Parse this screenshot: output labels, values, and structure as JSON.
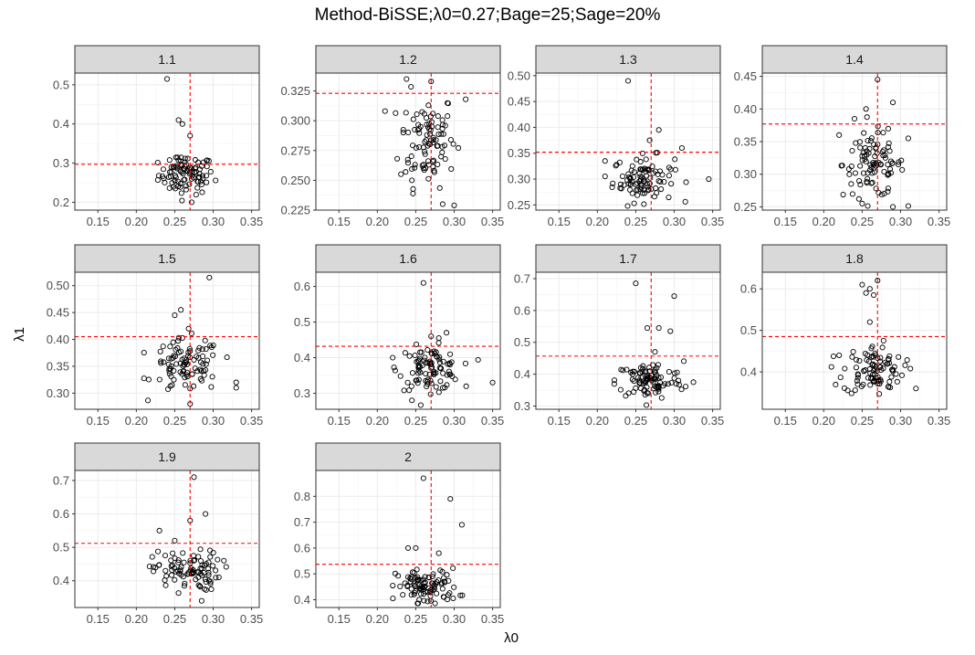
{
  "chart_data": {
    "type": "scatter",
    "title": "Method-BiSSE;λ0=0.27;Bage=25;Sage=20%",
    "xlabel": "λ0",
    "ylabel": "λ1",
    "xlim": [
      0.12,
      0.36
    ],
    "x_ticks": [
      0.15,
      0.2,
      0.25,
      0.3,
      0.35
    ],
    "x_tick_labels": [
      "0.15",
      "0.20",
      "0.25",
      "0.30",
      "0.35"
    ],
    "vline_x": 0.27,
    "colors": {
      "reference_line": "#ff0000",
      "strip_bg": "#d9d9d9",
      "grid": "#ebebeb",
      "point": "#000000"
    },
    "grid": true,
    "legend": "none",
    "panels": [
      {
        "label": "1.1",
        "hline": 0.297,
        "ylim": [
          0.18,
          0.53
        ],
        "y_ticks": [
          0.2,
          0.3,
          0.4,
          0.5
        ],
        "y_tick_labels": [
          "0.2",
          "0.3",
          "0.4",
          "0.5"
        ],
        "outliers": [
          [
            0.24,
            0.515
          ],
          [
            0.255,
            0.41
          ],
          [
            0.26,
            0.4
          ],
          [
            0.27,
            0.37
          ],
          [
            0.272,
            0.2
          ]
        ],
        "center": [
          0.265,
          0.27
        ],
        "spread": [
          0.018,
          0.025
        ]
      },
      {
        "label": "1.2",
        "hline": 0.323,
        "ylim": [
          0.225,
          0.34
        ],
        "y_ticks": [
          0.225,
          0.25,
          0.275,
          0.3,
          0.325
        ],
        "y_tick_labels": [
          "0.225",
          "0.250",
          "0.275",
          "0.300",
          "0.325"
        ],
        "outliers": [
          [
            0.238,
            0.335
          ],
          [
            0.27,
            0.333
          ],
          [
            0.315,
            0.318
          ],
          [
            0.3,
            0.229
          ],
          [
            0.245,
            0.25
          ],
          [
            0.285,
            0.23
          ]
        ],
        "center": [
          0.265,
          0.285
        ],
        "spread": [
          0.018,
          0.02
        ]
      },
      {
        "label": "1.3",
        "hline": 0.352,
        "ylim": [
          0.24,
          0.505
        ],
        "y_ticks": [
          0.25,
          0.3,
          0.35,
          0.4,
          0.45,
          0.5
        ],
        "y_tick_labels": [
          "0.25",
          "0.30",
          "0.35",
          "0.40",
          "0.45",
          "0.50"
        ],
        "outliers": [
          [
            0.24,
            0.49
          ],
          [
            0.28,
            0.395
          ],
          [
            0.268,
            0.375
          ],
          [
            0.345,
            0.3
          ],
          [
            0.31,
            0.36
          ],
          [
            0.21,
            0.335
          ]
        ],
        "center": [
          0.26,
          0.3
        ],
        "spread": [
          0.02,
          0.022
        ]
      },
      {
        "label": "1.4",
        "hline": 0.377,
        "ylim": [
          0.245,
          0.455
        ],
        "y_ticks": [
          0.25,
          0.3,
          0.35,
          0.4,
          0.45
        ],
        "y_tick_labels": [
          "0.25",
          "0.30",
          "0.35",
          "0.40",
          "0.45"
        ],
        "outliers": [
          [
            0.27,
            0.445
          ],
          [
            0.29,
            0.41
          ],
          [
            0.255,
            0.4
          ],
          [
            0.24,
            0.385
          ],
          [
            0.22,
            0.36
          ],
          [
            0.29,
            0.25
          ],
          [
            0.25,
            0.255
          ],
          [
            0.31,
            0.355
          ]
        ],
        "center": [
          0.265,
          0.315
        ],
        "spread": [
          0.02,
          0.025
        ]
      },
      {
        "label": "1.5",
        "hline": 0.405,
        "ylim": [
          0.27,
          0.525
        ],
        "y_ticks": [
          0.3,
          0.35,
          0.4,
          0.45,
          0.5
        ],
        "y_tick_labels": [
          "0.30",
          "0.35",
          "0.40",
          "0.45",
          "0.50"
        ],
        "outliers": [
          [
            0.295,
            0.515
          ],
          [
            0.258,
            0.455
          ],
          [
            0.25,
            0.445
          ],
          [
            0.268,
            0.42
          ],
          [
            0.33,
            0.32
          ],
          [
            0.33,
            0.31
          ],
          [
            0.27,
            0.28
          ]
        ],
        "center": [
          0.265,
          0.35
        ],
        "spread": [
          0.022,
          0.025
        ]
      },
      {
        "label": "1.6",
        "hline": 0.432,
        "ylim": [
          0.255,
          0.64
        ],
        "y_ticks": [
          0.3,
          0.4,
          0.5,
          0.6
        ],
        "y_tick_labels": [
          "0.3",
          "0.4",
          "0.5",
          "0.6"
        ],
        "outliers": [
          [
            0.26,
            0.61
          ],
          [
            0.27,
            0.46
          ],
          [
            0.28,
            0.455
          ],
          [
            0.29,
            0.47
          ],
          [
            0.35,
            0.33
          ],
          [
            0.245,
            0.28
          ],
          [
            0.22,
            0.4
          ]
        ],
        "center": [
          0.268,
          0.37
        ],
        "spread": [
          0.02,
          0.03
        ]
      },
      {
        "label": "1.7",
        "hline": 0.457,
        "ylim": [
          0.29,
          0.72
        ],
        "y_ticks": [
          0.3,
          0.4,
          0.5,
          0.6,
          0.7
        ],
        "y_tick_labels": [
          "0.3",
          "0.4",
          "0.5",
          "0.6",
          "0.7"
        ],
        "outliers": [
          [
            0.25,
            0.685
          ],
          [
            0.3,
            0.645
          ],
          [
            0.265,
            0.545
          ],
          [
            0.28,
            0.545
          ],
          [
            0.295,
            0.535
          ],
          [
            0.275,
            0.47
          ],
          [
            0.325,
            0.375
          ]
        ],
        "center": [
          0.268,
          0.38
        ],
        "spread": [
          0.022,
          0.03
        ]
      },
      {
        "label": "1.8",
        "hline": 0.485,
        "ylim": [
          0.31,
          0.64
        ],
        "y_ticks": [
          0.4,
          0.5,
          0.6
        ],
        "y_tick_labels": [
          "0.4",
          "0.5",
          "0.6"
        ],
        "outliers": [
          [
            0.27,
            0.62
          ],
          [
            0.25,
            0.61
          ],
          [
            0.26,
            0.6
          ],
          [
            0.255,
            0.59
          ],
          [
            0.265,
            0.585
          ],
          [
            0.26,
            0.52
          ],
          [
            0.32,
            0.36
          ],
          [
            0.22,
            0.44
          ]
        ],
        "center": [
          0.265,
          0.405
        ],
        "spread": [
          0.02,
          0.03
        ]
      },
      {
        "label": "1.9",
        "hline": 0.512,
        "ylim": [
          0.32,
          0.73
        ],
        "y_ticks": [
          0.4,
          0.5,
          0.6,
          0.7
        ],
        "y_tick_labels": [
          "0.4",
          "0.5",
          "0.6",
          "0.7"
        ],
        "outliers": [
          [
            0.275,
            0.71
          ],
          [
            0.29,
            0.6
          ],
          [
            0.27,
            0.58
          ],
          [
            0.23,
            0.55
          ],
          [
            0.285,
            0.34
          ],
          [
            0.25,
            0.52
          ]
        ],
        "center": [
          0.265,
          0.43
        ],
        "spread": [
          0.022,
          0.03
        ]
      },
      {
        "label": "2",
        "hline": 0.537,
        "ylim": [
          0.37,
          0.9
        ],
        "y_ticks": [
          0.4,
          0.5,
          0.6,
          0.7,
          0.8
        ],
        "y_tick_labels": [
          "0.4",
          "0.5",
          "0.6",
          "0.7",
          "0.8"
        ],
        "outliers": [
          [
            0.26,
            0.87
          ],
          [
            0.295,
            0.79
          ],
          [
            0.31,
            0.69
          ],
          [
            0.24,
            0.6
          ],
          [
            0.25,
            0.6
          ],
          [
            0.28,
            0.58
          ]
        ],
        "center": [
          0.265,
          0.45
        ],
        "spread": [
          0.02,
          0.035
        ]
      }
    ]
  }
}
